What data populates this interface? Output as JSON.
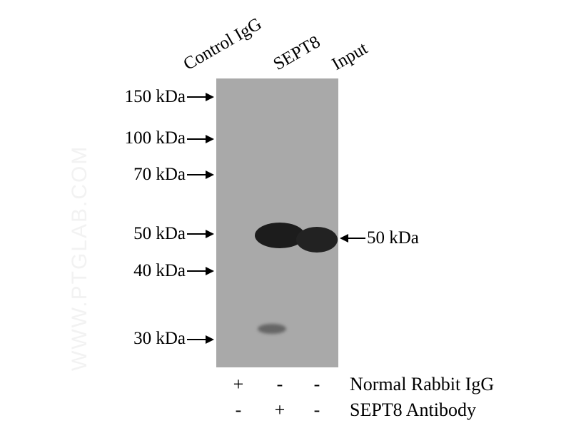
{
  "lanes": [
    "Control IgG",
    "SEPT8",
    "Input"
  ],
  "markers": [
    "150 kDa",
    "100 kDa",
    "70 kDa",
    "50 kDa",
    "40 kDa",
    "30 kDa"
  ],
  "target_label": "50 kDa",
  "watermark": "WWW.PTGLAB.COM",
  "conditions": [
    {
      "label": "Normal Rabbit IgG",
      "signs": [
        "+",
        "-",
        "-"
      ]
    },
    {
      "label": "SEPT8 Antibody",
      "signs": [
        "-",
        "+",
        "-"
      ]
    }
  ],
  "colors": {
    "membrane": "#a9a9a9",
    "band": "#1c1c1c"
  }
}
